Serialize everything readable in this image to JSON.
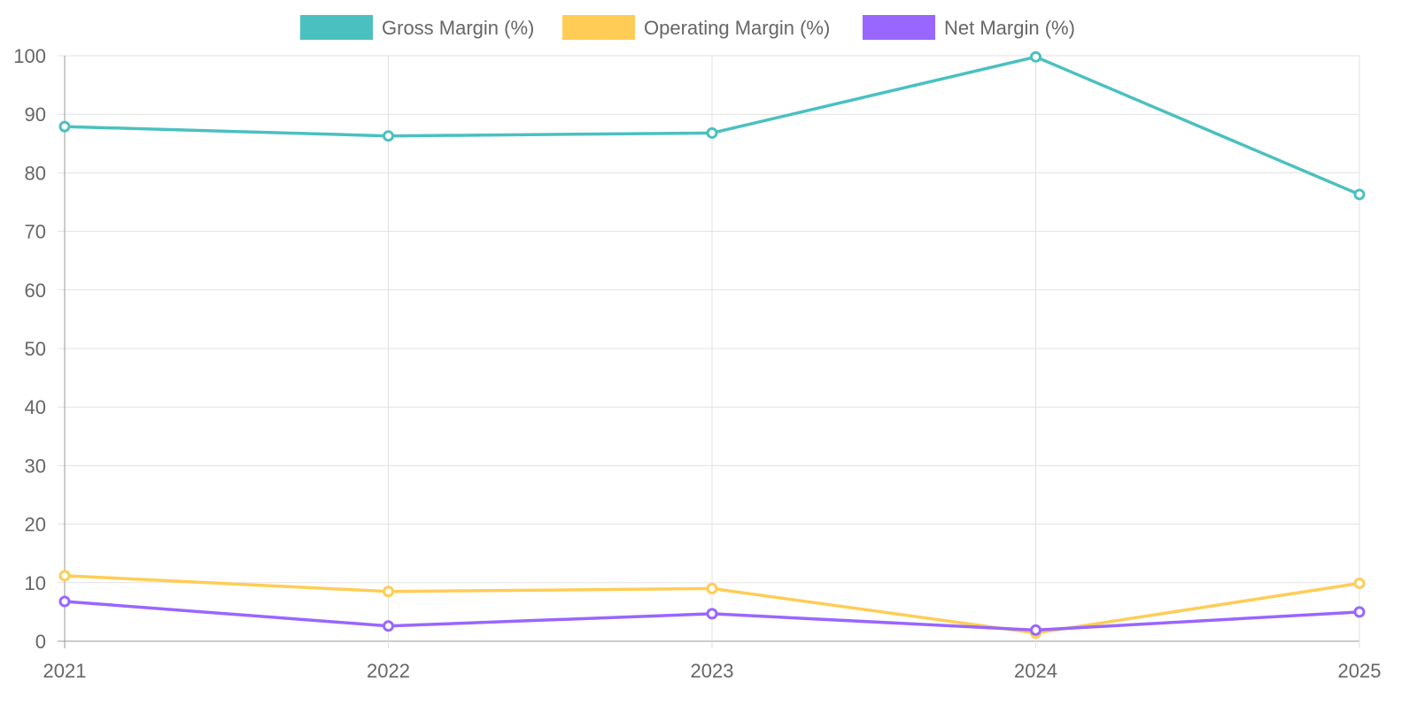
{
  "chart_data": {
    "type": "line",
    "title": "",
    "xlabel": "",
    "ylabel": "",
    "categories": [
      "2021",
      "2022",
      "2023",
      "2024",
      "2025"
    ],
    "ylim": [
      0,
      100
    ],
    "yticks": [
      0,
      10,
      20,
      30,
      40,
      50,
      60,
      70,
      80,
      90,
      100
    ],
    "grid": true,
    "legend_position": "top-center",
    "series": [
      {
        "name": "Gross Margin (%)",
        "color": "#4bc0c0",
        "values": [
          87.9,
          86.3,
          86.8,
          99.8,
          76.3
        ]
      },
      {
        "name": "Operating Margin (%)",
        "color": "#ffcd56",
        "values": [
          11.2,
          8.5,
          9.0,
          1.4,
          9.9
        ]
      },
      {
        "name": "Net Margin (%)",
        "color": "#9966ff",
        "values": [
          6.8,
          2.6,
          4.7,
          1.9,
          5.0
        ]
      }
    ]
  }
}
